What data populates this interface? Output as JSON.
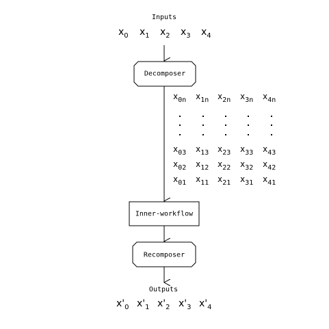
{
  "inputs_label": "Inputs",
  "outputs_label": "Outputs",
  "inputs": [
    {
      "base": "x",
      "sub": "0"
    },
    {
      "base": "x",
      "sub": "1"
    },
    {
      "base": "x",
      "sub": "2"
    },
    {
      "base": "x",
      "sub": "3"
    },
    {
      "base": "x",
      "sub": "4"
    }
  ],
  "outputs": [
    {
      "base": "x'",
      "sub": "0"
    },
    {
      "base": "x'",
      "sub": "1"
    },
    {
      "base": "x'",
      "sub": "2"
    },
    {
      "base": "x'",
      "sub": "3"
    },
    {
      "base": "x'",
      "sub": "4"
    }
  ],
  "nodes": {
    "decomposer": "Decomposer",
    "inner_workflow": "Inner-workflow",
    "recomposer": "Recomposer"
  },
  "matrix": {
    "rows": [
      [
        "0n",
        "1n",
        "2n",
        "3n",
        "4n"
      ],
      [
        "03",
        "13",
        "23",
        "33",
        "43"
      ],
      [
        "02",
        "12",
        "22",
        "32",
        "42"
      ],
      [
        "01",
        "11",
        "21",
        "31",
        "41"
      ]
    ],
    "ellipsis": "."
  }
}
